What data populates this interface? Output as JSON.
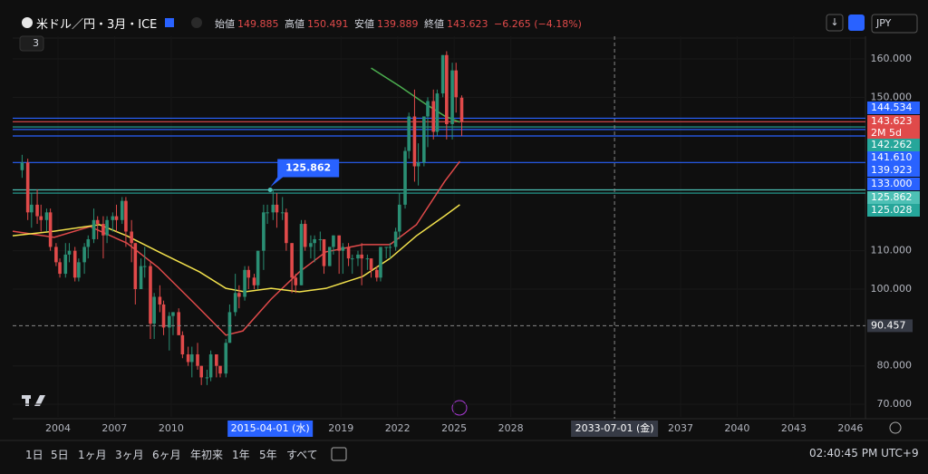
{
  "header": {
    "symbol": "米ドル／円・3月・ICE",
    "indicator_count": "3",
    "open_label": "始値",
    "open": 149.885,
    "high_label": "高値",
    "high": 150.491,
    "low_label": "安値",
    "low": 139.889,
    "close_label": "終値",
    "close": 143.623,
    "change": "−6.265 (−4.18%)",
    "currency": "JPY"
  },
  "chart_data": {
    "type": "candlestick",
    "up_color": "#2a8f74",
    "down_color": "#e04a4a",
    "candles": [
      [
        2002.1,
        131,
        135,
        129,
        133
      ],
      [
        2002.4,
        133,
        134,
        118,
        120
      ],
      [
        2002.6,
        120,
        125,
        116,
        122
      ],
      [
        2002.9,
        122,
        126,
        117,
        119
      ],
      [
        2003.1,
        119,
        122,
        115,
        118
      ],
      [
        2003.4,
        118,
        121,
        115,
        120
      ],
      [
        2003.6,
        120,
        121,
        110,
        111
      ],
      [
        2003.9,
        111,
        112,
        106,
        107
      ],
      [
        2004.1,
        107,
        108,
        103,
        104
      ],
      [
        2004.4,
        104,
        112,
        103,
        109
      ],
      [
        2004.6,
        109,
        112,
        107,
        110
      ],
      [
        2004.9,
        110,
        111,
        102,
        103
      ],
      [
        2005.1,
        103,
        108,
        102,
        107
      ],
      [
        2005.4,
        107,
        112,
        104,
        111
      ],
      [
        2005.6,
        111,
        114,
        108,
        113
      ],
      [
        2005.9,
        113,
        121,
        112,
        118
      ],
      [
        2006.1,
        118,
        119,
        113,
        117
      ],
      [
        2006.4,
        117,
        119,
        108,
        114
      ],
      [
        2006.6,
        114,
        119,
        112,
        118
      ],
      [
        2006.9,
        118,
        120,
        115,
        119
      ],
      [
        2007.1,
        119,
        122,
        115,
        118
      ],
      [
        2007.4,
        118,
        124,
        117,
        123
      ],
      [
        2007.6,
        123,
        124,
        111,
        115
      ],
      [
        2007.9,
        115,
        118,
        107,
        112
      ],
      [
        2008.1,
        112,
        112,
        96,
        100
      ],
      [
        2008.4,
        100,
        108,
        100,
        106
      ],
      [
        2008.6,
        106,
        111,
        103,
        106
      ],
      [
        2008.9,
        106,
        107,
        87,
        91
      ],
      [
        2009.1,
        91,
        99,
        87,
        98
      ],
      [
        2009.4,
        98,
        101,
        94,
        96
      ],
      [
        2009.6,
        96,
        97,
        88,
        90
      ],
      [
        2009.9,
        90,
        94,
        84,
        93
      ],
      [
        2010.1,
        93,
        94,
        88,
        94
      ],
      [
        2010.4,
        94,
        95,
        88,
        88
      ],
      [
        2010.6,
        88,
        89,
        82,
        83
      ],
      [
        2010.9,
        83,
        85,
        80,
        81
      ],
      [
        2011.1,
        81,
        85,
        77,
        83
      ],
      [
        2011.4,
        83,
        86,
        79,
        80
      ],
      [
        2011.6,
        80,
        80,
        75,
        77
      ],
      [
        2011.9,
        77,
        79,
        75,
        77
      ],
      [
        2012.1,
        77,
        84,
        76,
        83
      ],
      [
        2012.4,
        83,
        83,
        77,
        80
      ],
      [
        2012.6,
        80,
        80,
        77,
        78
      ],
      [
        2012.9,
        78,
        87,
        77,
        86
      ],
      [
        2013.1,
        86,
        96,
        86,
        94
      ],
      [
        2013.4,
        94,
        104,
        93,
        99
      ],
      [
        2013.6,
        99,
        101,
        95,
        98
      ],
      [
        2013.9,
        98,
        106,
        97,
        105
      ],
      [
        2014.1,
        105,
        106,
        100,
        103
      ],
      [
        2014.4,
        103,
        104,
        100,
        101
      ],
      [
        2014.6,
        101,
        110,
        100,
        110
      ],
      [
        2014.9,
        110,
        122,
        105,
        120
      ],
      [
        2015.1,
        120,
        122,
        117,
        120
      ],
      [
        2015.4,
        120,
        126,
        118,
        122
      ],
      [
        2015.6,
        122,
        125,
        116,
        120
      ],
      [
        2015.9,
        120,
        124,
        118,
        120
      ],
      [
        2016.1,
        120,
        121,
        110,
        112
      ],
      [
        2016.4,
        112,
        112,
        99,
        103
      ],
      [
        2016.6,
        103,
        104,
        99,
        101
      ],
      [
        2016.9,
        101,
        118,
        101,
        117
      ],
      [
        2017.1,
        117,
        118,
        110,
        111
      ],
      [
        2017.4,
        111,
        114,
        108,
        112
      ],
      [
        2017.6,
        112,
        114,
        107,
        113
      ],
      [
        2017.9,
        113,
        115,
        110,
        113
      ],
      [
        2018.1,
        113,
        113,
        104,
        106
      ],
      [
        2018.4,
        106,
        111,
        106,
        111
      ],
      [
        2018.6,
        111,
        114,
        109,
        114
      ],
      [
        2018.9,
        114,
        114,
        104,
        110
      ],
      [
        2019.1,
        110,
        112,
        104,
        111
      ],
      [
        2019.4,
        111,
        112,
        106,
        108
      ],
      [
        2019.6,
        108,
        109,
        104,
        108
      ],
      [
        2019.9,
        108,
        110,
        106,
        109
      ],
      [
        2020.1,
        109,
        112,
        101,
        108
      ],
      [
        2020.4,
        108,
        109,
        105,
        108
      ],
      [
        2020.6,
        108,
        108,
        103,
        105
      ],
      [
        2020.9,
        105,
        106,
        102,
        103
      ],
      [
        2021.1,
        103,
        111,
        102,
        111
      ],
      [
        2021.4,
        111,
        111,
        108,
        111
      ],
      [
        2021.6,
        111,
        112,
        108,
        111
      ],
      [
        2021.9,
        111,
        116,
        110,
        115
      ],
      [
        2022.1,
        115,
        125,
        113,
        122
      ],
      [
        2022.4,
        122,
        137,
        121,
        136
      ],
      [
        2022.6,
        136,
        146,
        134,
        145
      ],
      [
        2022.9,
        145,
        152,
        128,
        132
      ],
      [
        2023.1,
        132,
        138,
        127,
        133
      ],
      [
        2023.4,
        133,
        145,
        132,
        145
      ],
      [
        2023.6,
        145,
        150,
        137,
        149
      ],
      [
        2023.9,
        149,
        152,
        139,
        141
      ],
      [
        2024.1,
        141,
        152,
        140,
        151
      ],
      [
        2024.4,
        151,
        161,
        150,
        161
      ],
      [
        2024.6,
        161,
        162,
        139,
        143
      ],
      [
        2024.9,
        143,
        159,
        139,
        157
      ],
      [
        2025.1,
        157,
        159,
        146,
        150
      ],
      [
        2025.4,
        149.885,
        150.491,
        139.889,
        143.623
      ]
    ],
    "lines": [
      {
        "color": "#e04a4a",
        "x": [
          2001.6,
          2003.8,
          2005.7,
          2007.65,
          2009.3,
          2011.25,
          2012.9,
          2013.8,
          2015.3,
          2016.8,
          2018.2,
          2020.15,
          2021.6,
          2023.0,
          2024.5,
          2025.3
        ],
        "values": [
          115.1,
          113.5,
          116.3,
          112.0,
          105.7,
          96.2,
          88.0,
          89.1,
          97.4,
          104.5,
          109.7,
          111.6,
          111.6,
          116.8,
          128.1,
          133.3
        ]
      },
      {
        "color": "#f2e14c",
        "x": [
          2001.6,
          2003.8,
          2006.2,
          2007.65,
          2009.55,
          2011.5,
          2012.9,
          2013.9,
          2015.3,
          2016.8,
          2018.2,
          2020.15,
          2021.6,
          2023.0,
          2024.5,
          2025.3
        ],
        "values": [
          113.9,
          115.1,
          116.8,
          113.9,
          109.2,
          104.5,
          100.2,
          99.3,
          100.2,
          99.3,
          100.2,
          103.3,
          108.0,
          113.9,
          119.1,
          122.0
        ]
      },
      {
        "color": "#4caf50",
        "x": [
          2020.6,
          2022.1,
          2023.5,
          2024.5,
          2025.3
        ],
        "values": [
          157.6,
          152.9,
          148.2,
          145.1,
          143.5
        ]
      }
    ],
    "levels": [
      {
        "value": 144.534,
        "color": "#2962ff"
      },
      {
        "value": 143.623,
        "color": "#e04a4a",
        "countdown": "2M 5d"
      },
      {
        "value": 142.262,
        "color": "#26a69a"
      },
      {
        "value": 141.61,
        "label": "141.610",
        "color": "#2962ff"
      },
      {
        "value": 139.923,
        "color": "#2962ff"
      },
      {
        "value": 133,
        "label": "133.000",
        "color": "#2962ff"
      },
      {
        "value": 125.862,
        "color": "#4dc0b5"
      },
      {
        "value": 125.028,
        "color": "#26a69a"
      }
    ],
    "xlim": [
      2001.6,
      2046.8
    ],
    "ylim": [
      66.7,
      165.9
    ],
    "xticks": [
      2004,
      2007,
      2010,
      2019,
      2022,
      2025,
      2028,
      2037,
      2040,
      2043,
      2046
    ],
    "yticks": [
      {
        "value": 160,
        "label": "160.000"
      },
      {
        "value": 150,
        "label": "150.000"
      },
      {
        "value": 110,
        "label": "110.000"
      },
      {
        "value": 100,
        "label": "100.000"
      },
      {
        "value": 80,
        "label": "80.000"
      },
      {
        "value": 70,
        "label": "70.000"
      }
    ],
    "crosshair": {
      "x": 2033.5,
      "x_label": "2033-07-01 (金)",
      "y": 90.457
    },
    "marker": {
      "x": 2015.25,
      "x_label": "2015-04-01 (水)",
      "value": 125.862
    }
  },
  "toolbar": {
    "ranges": [
      "1日",
      "5日",
      "1ヶ月",
      "3ヶ月",
      "6ヶ月",
      "年初来",
      "1年",
      "5年",
      "すべて"
    ],
    "clock": "02:40:45 PM UTC+9"
  }
}
